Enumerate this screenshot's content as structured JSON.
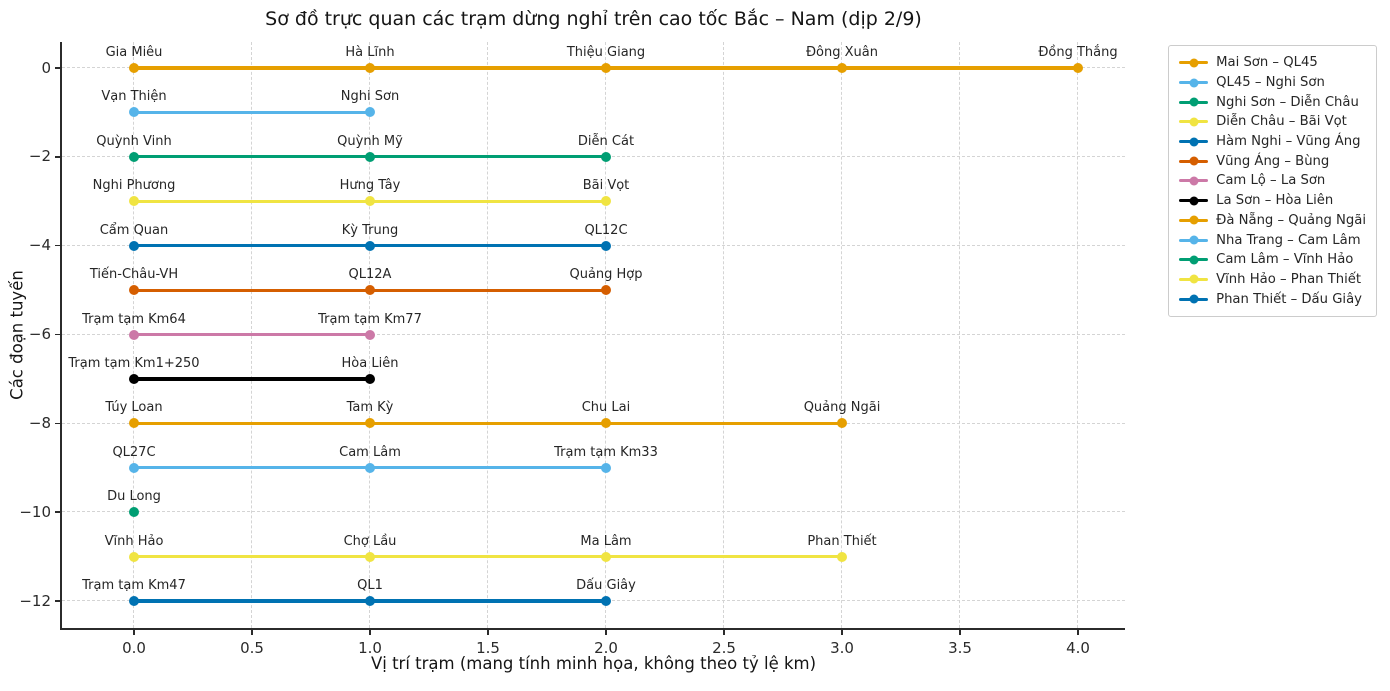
{
  "chart_data": {
    "type": "line",
    "title": "Sơ đồ trực quan các trạm dừng nghỉ trên cao tốc Bắc – Nam (dịp 2/9)",
    "xlabel": "Vị trí trạm (mang tính minh họa, không theo tỷ lệ km)",
    "ylabel": "Các đoạn tuyến",
    "xticks": [
      0.0,
      0.5,
      1.0,
      1.5,
      2.0,
      2.5,
      3.0,
      3.5,
      4.0
    ],
    "yticks": [
      0,
      -2,
      -4,
      -6,
      -8,
      -10,
      -12
    ],
    "xlim": [
      -0.305,
      4.2
    ],
    "ylim": [
      -12.6,
      0.585
    ],
    "grid": "dashed, light gray, vertical at every 0.5, horizontal at labeled y ticks",
    "legend_position": "outside upper right",
    "marker": "circle",
    "series": [
      {
        "name": "Mai Sơn – QL45",
        "color": "#E69F00",
        "y": 0,
        "stations": [
          {
            "label": "Gia Miêu",
            "x": 0
          },
          {
            "label": "Hà Lĩnh",
            "x": 1
          },
          {
            "label": "Thiệu Giang",
            "x": 2
          },
          {
            "label": "Đông Xuân",
            "x": 3
          },
          {
            "label": "Đồng Thắng",
            "x": 4
          }
        ]
      },
      {
        "name": "QL45 – Nghi Sơn",
        "color": "#56B4E9",
        "y": -1,
        "stations": [
          {
            "label": "Vạn Thiện",
            "x": 0
          },
          {
            "label": "Nghi Sơn",
            "x": 1
          }
        ]
      },
      {
        "name": "Nghi Sơn – Diễn Châu",
        "color": "#009E73",
        "y": -2,
        "stations": [
          {
            "label": "Quỳnh Vinh",
            "x": 0
          },
          {
            "label": "Quỳnh Mỹ",
            "x": 1
          },
          {
            "label": "Diễn Cát",
            "x": 2
          }
        ]
      },
      {
        "name": "Diễn Châu – Bãi Vọt",
        "color": "#F0E442",
        "y": -3,
        "stations": [
          {
            "label": "Nghi Phương",
            "x": 0
          },
          {
            "label": "Hưng Tây",
            "x": 1
          },
          {
            "label": "Bãi Vọt",
            "x": 2
          }
        ]
      },
      {
        "name": "Hàm Nghi – Vũng Áng",
        "color": "#0072B2",
        "y": -4,
        "stations": [
          {
            "label": "Cẩm Quan",
            "x": 0
          },
          {
            "label": "Kỳ Trung",
            "x": 1
          },
          {
            "label": "QL12C",
            "x": 2
          }
        ]
      },
      {
        "name": "Vũng Áng – Bùng",
        "color": "#D55E00",
        "y": -5,
        "stations": [
          {
            "label": "Tiến-Châu-VH",
            "x": 0
          },
          {
            "label": "QL12A",
            "x": 1
          },
          {
            "label": "Quảng Hợp",
            "x": 2
          }
        ]
      },
      {
        "name": "Cam Lộ – La Sơn",
        "color": "#CC79A7",
        "y": -6,
        "stations": [
          {
            "label": "Trạm tạm Km64",
            "x": 0
          },
          {
            "label": "Trạm tạm Km77",
            "x": 1
          }
        ]
      },
      {
        "name": "La Sơn – Hòa Liên",
        "color": "#000000",
        "y": -7,
        "stations": [
          {
            "label": "Trạm tạm Km1+250",
            "x": 0
          },
          {
            "label": "Hòa Liên",
            "x": 1
          }
        ]
      },
      {
        "name": "Đà Nẵng – Quảng Ngãi",
        "color": "#E69F00",
        "y": -8,
        "stations": [
          {
            "label": "Túy Loan",
            "x": 0
          },
          {
            "label": "Tam Kỳ",
            "x": 1
          },
          {
            "label": "Chu Lai",
            "x": 2
          },
          {
            "label": "Quảng Ngãi",
            "x": 3
          }
        ]
      },
      {
        "name": "Nha Trang – Cam Lâm",
        "color": "#56B4E9",
        "y": -9,
        "stations": [
          {
            "label": "QL27C",
            "x": 0
          },
          {
            "label": "Cam Lâm",
            "x": 1
          },
          {
            "label": "Trạm tạm Km33",
            "x": 2
          }
        ]
      },
      {
        "name": "Cam Lâm – Vĩnh Hảo",
        "color": "#009E73",
        "y": -10,
        "stations": [
          {
            "label": "Du Long",
            "x": 0
          }
        ]
      },
      {
        "name": "Vĩnh Hảo – Phan Thiết",
        "color": "#F0E442",
        "y": -11,
        "stations": [
          {
            "label": "Vĩnh Hảo",
            "x": 0
          },
          {
            "label": "Chợ Lầu",
            "x": 1
          },
          {
            "label": "Ma Lâm",
            "x": 2
          },
          {
            "label": "Phan Thiết",
            "x": 3
          }
        ]
      },
      {
        "name": "Phan Thiết – Dấu Giây",
        "color": "#0072B2",
        "y": -12,
        "stations": [
          {
            "label": "Trạm tạm Km47",
            "x": 0
          },
          {
            "label": "QL1",
            "x": 1
          },
          {
            "label": "Dấu Giây",
            "x": 2
          }
        ]
      }
    ]
  }
}
